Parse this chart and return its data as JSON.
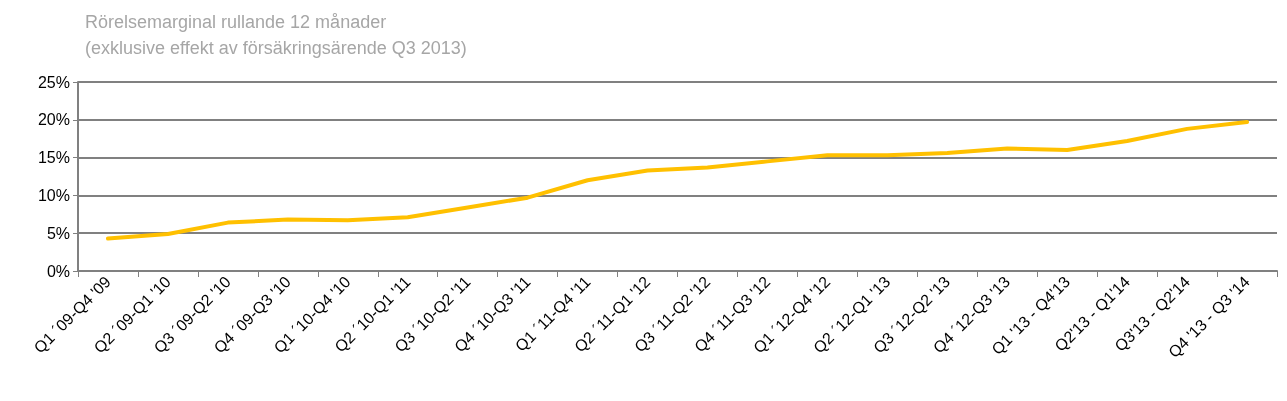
{
  "chart_data": {
    "type": "line",
    "title": "Rörelsemarginal rullande 12 månader",
    "subtitle": "(exklusive effekt av försäkringsärende Q3 2013)",
    "categories": [
      "Q1 ´09-Q4 '09",
      "Q2 ´09-Q1 '10",
      "Q3 ´09-Q2 '10",
      "Q4 ´09-Q3 '10",
      "Q1 ´10-Q4 '10",
      "Q2 ´10-Q1 '11",
      "Q3 ´10-Q2 '11",
      "Q4 ´10-Q3 '11",
      "Q1 ´11-Q4 '11",
      "Q2 ´11-Q1 '12",
      "Q3 ´11-Q2 '12",
      "Q4 ´11-Q3 '12",
      "Q1 ´12-Q4 '12",
      "Q2 ´12-Q1 '13",
      "Q3 ´12-Q2 '13",
      "Q4 ´12-Q3 '13",
      "Q1 '13 - Q4'13",
      "Q2'13 - Q1'14",
      "Q3'13 - Q2'14",
      "Q4 '13 - Q3 '14"
    ],
    "series": [
      {
        "color": "#ffc000",
        "values": [
          4.3,
          4.9,
          6.4,
          6.8,
          6.7,
          7.1,
          8.4,
          9.7,
          12.0,
          13.3,
          13.7,
          14.5,
          15.3,
          15.3,
          15.6,
          16.2,
          16.0,
          17.2,
          18.8,
          19.7
        ]
      }
    ],
    "ylim": [
      0,
      25
    ],
    "yticks": [
      {
        "value": 0,
        "label": "0%"
      },
      {
        "value": 5,
        "label": "5%"
      },
      {
        "value": 10,
        "label": "10%"
      },
      {
        "value": 15,
        "label": "15%"
      },
      {
        "value": 20,
        "label": "20%"
      },
      {
        "value": 25,
        "label": "25%"
      }
    ],
    "grid": "y",
    "marker": "none",
    "line_style": "solid"
  }
}
